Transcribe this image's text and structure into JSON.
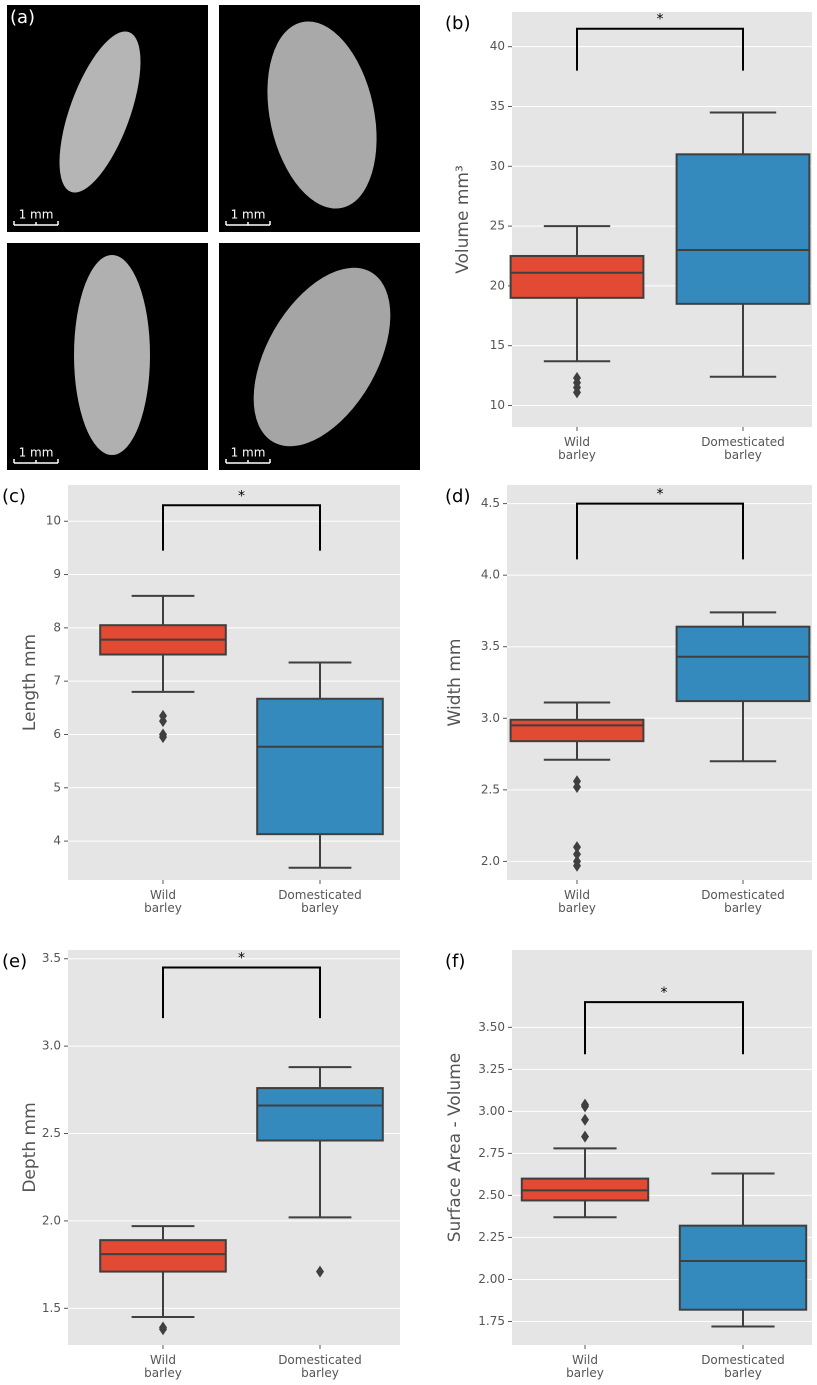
{
  "panel_a": {
    "label": "(a)",
    "scale_bars": [
      "1 mm",
      "1 mm",
      "1 mm",
      "1 mm"
    ]
  },
  "chart_data": [
    {
      "type": "box",
      "panel_label": "(b)",
      "ylabel": "Volume mm³",
      "categories": [
        "Wild\nbarley",
        "Domesticated\nbarley"
      ],
      "boxes": [
        {
          "color": "#e24a33",
          "whislo": 13.7,
          "q1": 19.0,
          "med": 21.1,
          "q3": 22.5,
          "whishi": 25.0,
          "fliers": [
            12.3,
            11.9,
            11.5,
            11.1
          ]
        },
        {
          "color": "#348abd",
          "whislo": 12.4,
          "q1": 18.5,
          "med": 23.0,
          "q3": 31.0,
          "whishi": 34.5,
          "fliers": []
        }
      ],
      "ylim": [
        8.2,
        42.9
      ],
      "yticks": [
        10,
        15,
        20,
        25,
        30,
        35,
        40
      ],
      "grid": true,
      "significance": {
        "label": "*",
        "y": 41.5,
        "leg_bottom": 38
      }
    },
    {
      "type": "box",
      "panel_label": "(c)",
      "ylabel": "Length mm",
      "categories": [
        "Wild\nbarley",
        "Domesticated\nbarley"
      ],
      "boxes": [
        {
          "color": "#e24a33",
          "whislo": 6.8,
          "q1": 7.5,
          "med": 7.78,
          "q3": 8.05,
          "whishi": 8.6,
          "fliers": [
            6.35,
            6.25,
            6.0,
            5.95
          ]
        },
        {
          "color": "#348abd",
          "whislo": 3.5,
          "q1": 4.13,
          "med": 5.77,
          "q3": 6.67,
          "whishi": 7.35,
          "fliers": []
        }
      ],
      "ylim": [
        3.27,
        10.68
      ],
      "yticks": [
        4,
        5,
        6,
        7,
        8,
        9,
        10
      ],
      "grid": true,
      "significance": {
        "label": "*",
        "y": 10.3,
        "leg_bottom": 9.45
      }
    },
    {
      "type": "box",
      "panel_label": "(d)",
      "ylabel": "Width mm",
      "categories": [
        "Wild\nbarley",
        "Domesticated\nbarley"
      ],
      "boxes": [
        {
          "color": "#e24a33",
          "whislo": 2.71,
          "q1": 2.84,
          "med": 2.95,
          "q3": 2.99,
          "whishi": 3.11,
          "fliers": [
            2.56,
            2.52,
            2.1,
            2.05,
            2.0,
            1.97
          ]
        },
        {
          "color": "#348abd",
          "whislo": 2.7,
          "q1": 3.12,
          "med": 3.43,
          "q3": 3.64,
          "whishi": 3.74,
          "fliers": []
        }
      ],
      "ylim": [
        1.87,
        4.63
      ],
      "yticks": [
        {
          "value": 2,
          "label": "2.0"
        },
        2.5,
        {
          "value": 3,
          "label": "3.0"
        },
        3.5,
        {
          "value": 4,
          "label": "4.0"
        },
        4.5
      ],
      "grid": true,
      "significance": {
        "label": "*",
        "y": 4.5,
        "leg_bottom": 4.11
      }
    },
    {
      "type": "box",
      "panel_label": "(e)",
      "ylabel": "Depth mm",
      "categories": [
        "Wild\nbarley",
        "Domesticated\nbarley"
      ],
      "boxes": [
        {
          "color": "#e24a33",
          "whislo": 1.45,
          "q1": 1.71,
          "med": 1.81,
          "q3": 1.89,
          "whishi": 1.97,
          "fliers": [
            1.39,
            1.38
          ]
        },
        {
          "color": "#348abd",
          "whislo": 2.02,
          "q1": 2.46,
          "med": 2.66,
          "q3": 2.76,
          "whishi": 2.88,
          "fliers": [
            1.71
          ]
        }
      ],
      "ylim": [
        1.29,
        3.55
      ],
      "yticks": [
        1.5,
        {
          "value": 2,
          "label": "2.0"
        },
        2.5,
        {
          "value": 3,
          "label": "3.0"
        },
        3.5
      ],
      "grid": true,
      "significance": {
        "label": "*",
        "y": 3.45,
        "leg_bottom": 3.16
      }
    },
    {
      "type": "box",
      "panel_label": "(f)",
      "ylabel": "Surface Area - Volume",
      "categories": [
        "Wild\nbarley",
        "Domesticated\nbarley"
      ],
      "boxes": [
        {
          "color": "#e24a33",
          "whislo": 2.37,
          "q1": 2.47,
          "med": 2.53,
          "q3": 2.6,
          "whishi": 2.78,
          "fliers": [
            2.85,
            2.95,
            3.03,
            3.04
          ]
        },
        {
          "color": "#348abd",
          "whislo": 1.72,
          "q1": 1.82,
          "med": 2.11,
          "q3": 2.32,
          "whishi": 2.63,
          "fliers": []
        }
      ],
      "ylim": [
        1.61,
        3.96
      ],
      "yticks": [
        1.75,
        {
          "value": 2,
          "label": "2.00"
        },
        2.25,
        {
          "value": 2.5,
          "label": "2.50"
        },
        2.75,
        {
          "value": 3,
          "label": "3.00"
        },
        3.25,
        {
          "value": 3.5,
          "label": "3.50"
        }
      ],
      "grid": true,
      "significance": {
        "label": "*",
        "y": 3.65,
        "leg_bottom": 3.34
      }
    }
  ]
}
